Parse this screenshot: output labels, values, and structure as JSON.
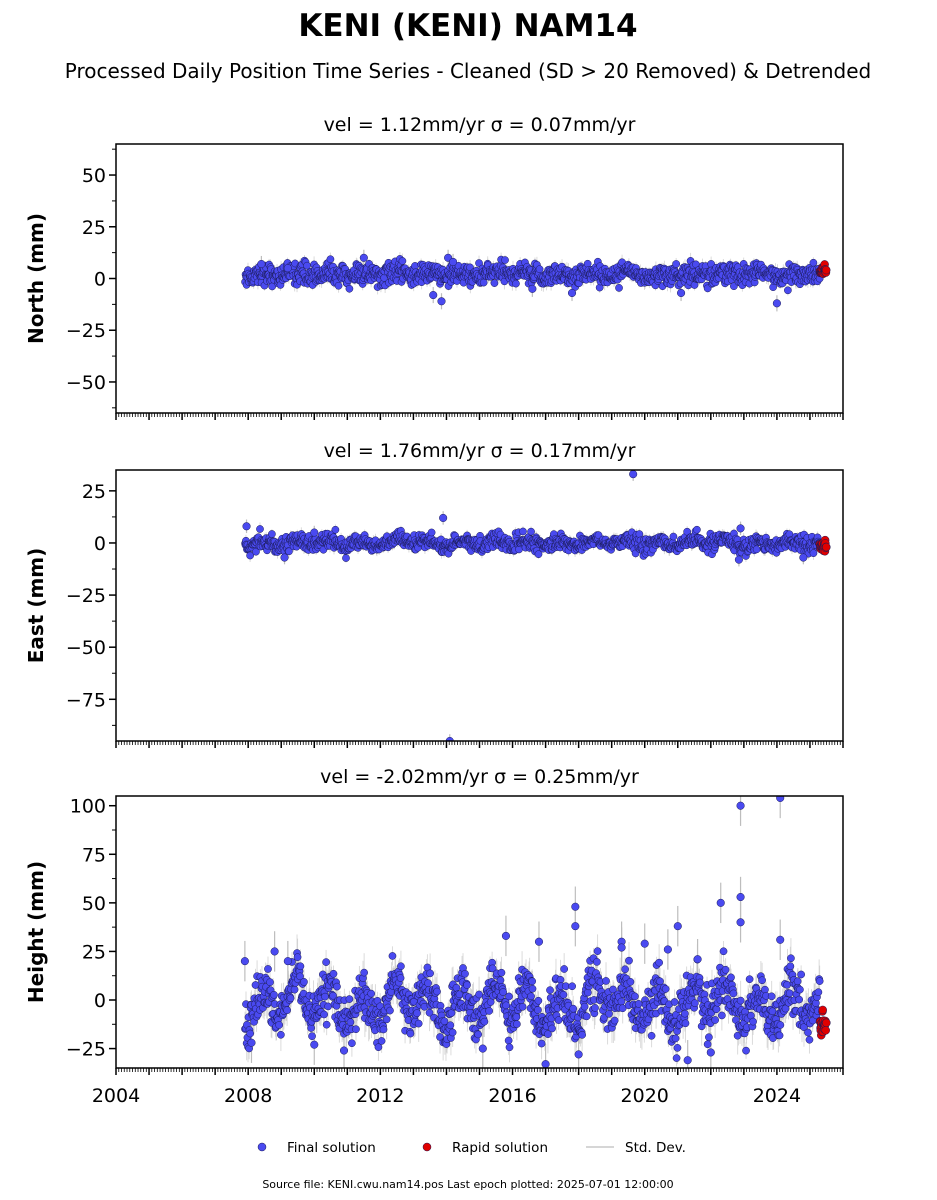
{
  "figure": {
    "title": "KENI (KENI) NAM14",
    "subtitle": "Processed Daily Position Time Series - Cleaned (SD > 20 Removed) & Detrended",
    "footer": "Source file: KENI.cwu.nam14.pos  Last epoch plotted: 2025-07-01 12:00:00"
  },
  "legend": {
    "placement": "bottom-center",
    "items": [
      {
        "label": "Final solution",
        "color": "#4a4af0",
        "marker": "circle"
      },
      {
        "label": "Rapid solution",
        "color": "#e00000",
        "marker": "circle"
      },
      {
        "label": "Std. Dev.",
        "color": "#c8c8c8",
        "marker": "line"
      }
    ]
  },
  "colors": {
    "final": "#4a4af0",
    "rapid": "#e00000",
    "errorbar": "#bdbdbd",
    "marker_edge": "#1a1a55"
  },
  "chart_data": [
    {
      "type": "scatter",
      "title": "vel = 1.12mm/yr   σ = 0.07mm/yr",
      "ylabel": "North (mm)",
      "xlabel": "",
      "xlim": [
        2004,
        2026
      ],
      "ylim": [
        -65,
        65
      ],
      "yticks": [
        -50,
        -25,
        0,
        25,
        50
      ],
      "xticks": [
        2004,
        2008,
        2012,
        2016,
        2020,
        2024
      ],
      "show_x_tick_labels": false,
      "grid": false,
      "series": [
        {
          "name": "Final solution",
          "x_range": [
            2007.9,
            2025.3
          ],
          "center": 2,
          "scatter_sd": 2.5,
          "annual_amp": 0.8,
          "err_typical": 3,
          "outliers": [
            [
              2008.4,
              7
            ],
            [
              2009.2,
              5
            ],
            [
              2011.5,
              10
            ],
            [
              2013.6,
              -8
            ],
            [
              2013.85,
              -11
            ],
            [
              2014.05,
              10
            ],
            [
              2014.2,
              8
            ],
            [
              2016.6,
              -5
            ],
            [
              2017.8,
              -7
            ],
            [
              2021.1,
              -7
            ],
            [
              2024.0,
              -12
            ]
          ]
        },
        {
          "name": "Rapid solution",
          "x_range": [
            2025.3,
            2025.5
          ],
          "center": 3.5,
          "scatter_sd": 1.2
        }
      ]
    },
    {
      "type": "scatter",
      "title": "vel = 1.76mm/yr   σ = 0.17mm/yr",
      "ylabel": "East (mm)",
      "xlabel": "",
      "xlim": [
        2004,
        2026
      ],
      "ylim": [
        -95,
        35
      ],
      "yticks": [
        -75,
        -50,
        -25,
        0,
        25
      ],
      "xticks": [
        2004,
        2008,
        2012,
        2016,
        2020,
        2024
      ],
      "show_x_tick_labels": false,
      "grid": false,
      "series": [
        {
          "name": "Final solution",
          "x_range": [
            2007.9,
            2025.3
          ],
          "center": 0,
          "scatter_sd": 1.8,
          "annual_amp": 1.2,
          "err_typical": 2.5,
          "outliers": [
            [
              2007.95,
              8
            ],
            [
              2009.1,
              -7
            ],
            [
              2010.0,
              5
            ],
            [
              2013.9,
              12
            ],
            [
              2014.1,
              -95
            ],
            [
              2019.65,
              33
            ],
            [
              2022.85,
              -8
            ],
            [
              2022.9,
              7
            ],
            [
              2024.8,
              -7
            ]
          ]
        },
        {
          "name": "Rapid solution",
          "x_range": [
            2025.3,
            2025.5
          ],
          "center": -1.5,
          "scatter_sd": 1.2
        }
      ]
    },
    {
      "type": "scatter",
      "title": "vel = -2.02mm/yr   σ = 0.25mm/yr",
      "ylabel": "Height (mm)",
      "xlabel": "",
      "xlim": [
        2004,
        2026
      ],
      "ylim": [
        -35,
        105
      ],
      "yticks": [
        -25,
        0,
        25,
        50,
        75,
        100
      ],
      "xticks": [
        2004,
        2008,
        2012,
        2016,
        2020,
        2024
      ],
      "xticklabels": [
        "2004",
        "2008",
        "2012",
        "2016",
        "2020",
        "2024"
      ],
      "show_x_tick_labels": true,
      "grid": false,
      "series": [
        {
          "name": "Final solution",
          "x_range": [
            2007.9,
            2025.3
          ],
          "center": -2,
          "scatter_sd": 6,
          "annual_amp": 9,
          "err_typical": 8,
          "outliers": [
            [
              2007.9,
              20
            ],
            [
              2008.1,
              -22
            ],
            [
              2008.8,
              25
            ],
            [
              2009.2,
              20
            ],
            [
              2010.0,
              -23
            ],
            [
              2010.9,
              -26
            ],
            [
              2015.1,
              -25
            ],
            [
              2015.8,
              33
            ],
            [
              2016.8,
              30
            ],
            [
              2017.0,
              -33
            ],
            [
              2017.9,
              48
            ],
            [
              2017.9,
              38
            ],
            [
              2018.0,
              -28
            ],
            [
              2019.3,
              30
            ],
            [
              2019.3,
              27
            ],
            [
              2020.0,
              29
            ],
            [
              2020.7,
              26
            ],
            [
              2021.0,
              38
            ],
            [
              2021.3,
              -31
            ],
            [
              2021.6,
              21
            ],
            [
              2022.0,
              -27
            ],
            [
              2022.3,
              50
            ],
            [
              2022.9,
              100
            ],
            [
              2022.9,
              53
            ],
            [
              2022.9,
              40
            ],
            [
              2024.1,
              104
            ],
            [
              2024.1,
              31
            ]
          ]
        },
        {
          "name": "Rapid solution",
          "x_range": [
            2025.3,
            2025.5
          ],
          "center": -13,
          "scatter_sd": 4
        }
      ]
    }
  ]
}
